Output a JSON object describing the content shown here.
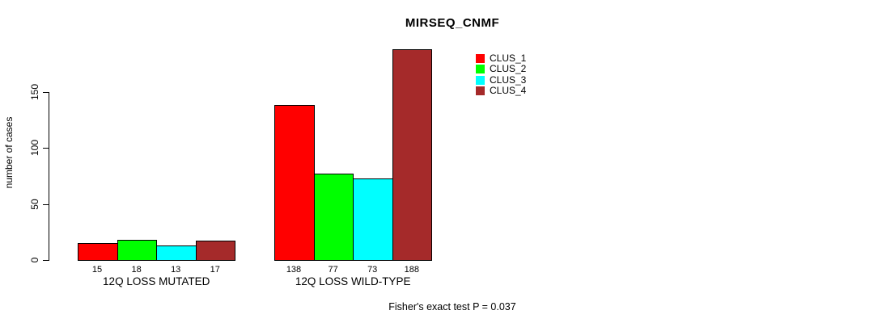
{
  "chart_data": {
    "type": "bar",
    "title": "MIRSEQ_CNMF",
    "xlabel": "",
    "ylabel": "number of cases",
    "ylim": [
      0,
      188
    ],
    "yticks": [
      0,
      50,
      100,
      150
    ],
    "grid": false,
    "legend_position": "top-right-inside",
    "categories": [
      "12Q LOSS MUTATED",
      "12Q LOSS WILD-TYPE"
    ],
    "series": [
      {
        "name": "CLUS_1",
        "color": "#FF0000",
        "values": [
          15,
          138
        ]
      },
      {
        "name": "CLUS_2",
        "color": "#00FF00",
        "values": [
          18,
          77
        ]
      },
      {
        "name": "CLUS_3",
        "color": "#00FFFF",
        "values": [
          13,
          73
        ]
      },
      {
        "name": "CLUS_4",
        "color": "#A52A2A",
        "values": [
          17,
          188
        ]
      }
    ],
    "bar_value_labels": [
      [
        "15",
        "18",
        "13",
        "17"
      ],
      [
        "138",
        "77",
        "73",
        "188"
      ]
    ],
    "annotation": "Fisher's exact test P = 0.037"
  }
}
